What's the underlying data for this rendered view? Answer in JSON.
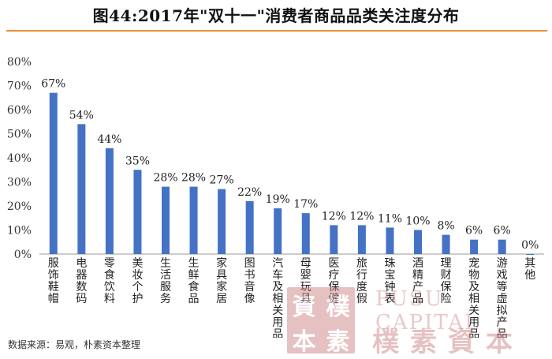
{
  "title": "图44:2017年\"双十一\"消费者商品品类关注度分布",
  "source": "数据来源：易观，朴素资本整理",
  "watermark": {
    "seal_chars": [
      "資",
      "樸",
      "本",
      "素"
    ],
    "english": "PUSU CAPITAL",
    "chinese": "樸素資本"
  },
  "colors": {
    "bar": "#4472c4",
    "rule": "#e8913a"
  },
  "chart_data": {
    "type": "bar",
    "title": "图44:2017年\"双十一\"消费者商品品类关注度分布",
    "categories": [
      "服饰鞋帽",
      "电器数码",
      "零食饮料",
      "美妆个护",
      "生活服务",
      "生鲜食品",
      "家具家居",
      "图书音像",
      "汽车及相关用品",
      "母婴玩具",
      "医疗保健",
      "旅行度假",
      "珠宝钟表",
      "酒精产品",
      "理财保险",
      "宠物及相关用品",
      "游戏等虚拟产品",
      "其他"
    ],
    "values": [
      67,
      54,
      44,
      35,
      28,
      28,
      27,
      22,
      19,
      17,
      12,
      12,
      11,
      10,
      8,
      6,
      6,
      0
    ],
    "data_labels": [
      "67%",
      "54%",
      "44%",
      "35%",
      "28%",
      "28%",
      "27%",
      "22%",
      "19%",
      "17%",
      "12%",
      "12%",
      "11%",
      "10%",
      "8%",
      "6%",
      "6%",
      "0%"
    ],
    "y_ticks": [
      "0%",
      "10%",
      "20%",
      "30%",
      "40%",
      "50%",
      "60%",
      "70%",
      "80%"
    ],
    "ylim": [
      0,
      80
    ],
    "grid": false,
    "legend": "none"
  }
}
